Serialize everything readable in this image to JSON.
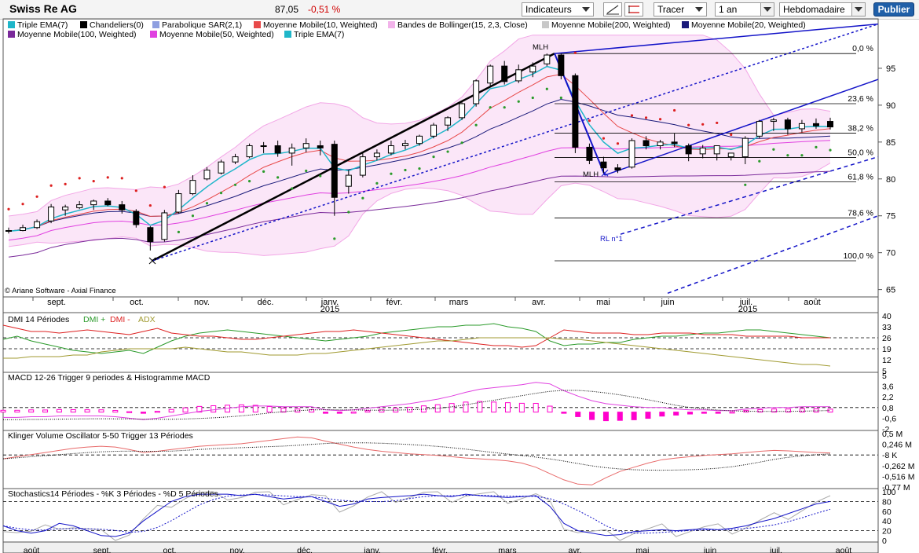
{
  "toolbar": {
    "title": "Swiss Re AG",
    "price": "87,05",
    "change": "-0,51 %",
    "indicators_label": "Indicateurs",
    "draw_label": "Tracer",
    "period_value": "1 an",
    "interval_value": "Hebdomadaire",
    "publish_label": "Publier"
  },
  "legend": [
    {
      "label": "Triple EMA(7)",
      "color": "#1fb6c9"
    },
    {
      "label": "Chandeliers(0)",
      "color": "#000000"
    },
    {
      "label": "Parabolique SAR(2,1)",
      "color": "#8e9fe0"
    },
    {
      "label": "Moyenne Mobile(10, Weighted)",
      "color": "#e84a4a"
    },
    {
      "label": "Bandes de Bollinger(15, 2,3, Close)",
      "color": "#f2b3ea"
    },
    {
      "label": "Moyenne Mobile(200, Weighted)",
      "color": "#c8c8c8"
    },
    {
      "label": "Moyenne Mobile(20, Weighted)",
      "color": "#1a1a7a"
    },
    {
      "label": "Moyenne Mobile(100, Weighted)",
      "color": "#7a2a9a"
    },
    {
      "label": "Moyenne Mobile(50, Weighted)",
      "color": "#e040e0"
    },
    {
      "label": "Triple EMA(7)",
      "color": "#1fb6c9"
    }
  ],
  "copyright": "© Ariane Software - Axial Finance",
  "colors": {
    "price_line": "#000000",
    "up": "#ffffff",
    "down": "#000000",
    "fib": "#000000",
    "trend": "#1414c8"
  },
  "chart_data": [
    {
      "type": "candlestick",
      "yticks": [
        95,
        90,
        85,
        80,
        75,
        70,
        65
      ],
      "ylim": [
        64,
        100
      ],
      "month_labels": [
        "sept.",
        "oct.",
        "nov.",
        "déc.",
        "janv.",
        "févr.",
        "mars",
        "avr.",
        "mai",
        "juin",
        "juil.",
        "août"
      ],
      "year_labels": [
        "2015",
        "2015"
      ],
      "fib_levels": [
        {
          "label": "0,0 %",
          "value": 97.0
        },
        {
          "label": "23,6 %",
          "value": 90.2
        },
        {
          "label": "38,2 %",
          "value": 86.2
        },
        {
          "label": "50,0 %",
          "value": 82.9
        },
        {
          "label": "61,8 %",
          "value": 79.6
        },
        {
          "label": "78,6 %",
          "value": 74.7
        },
        {
          "label": "100,0 %",
          "value": 68.9
        }
      ],
      "annotations": [
        "MLH",
        "MLH",
        "RL n°1"
      ],
      "candles": [
        {
          "o": 73.0,
          "h": 73.4,
          "l": 72.6,
          "c": 72.9
        },
        {
          "o": 73.0,
          "h": 73.8,
          "l": 72.9,
          "c": 73.4
        },
        {
          "o": 73.4,
          "h": 74.5,
          "l": 73.2,
          "c": 74.2
        },
        {
          "o": 74.3,
          "h": 76.6,
          "l": 74.0,
          "c": 76.2
        },
        {
          "o": 75.8,
          "h": 76.5,
          "l": 75.0,
          "c": 76.2
        },
        {
          "o": 76.1,
          "h": 77.0,
          "l": 75.9,
          "c": 76.5
        },
        {
          "o": 76.5,
          "h": 77.2,
          "l": 75.8,
          "c": 77.0
        },
        {
          "o": 77.0,
          "h": 77.4,
          "l": 76.3,
          "c": 76.5
        },
        {
          "o": 76.5,
          "h": 77.0,
          "l": 75.3,
          "c": 75.8
        },
        {
          "o": 75.6,
          "h": 75.9,
          "l": 73.4,
          "c": 73.8
        },
        {
          "o": 73.4,
          "h": 73.6,
          "l": 70.3,
          "c": 71.5
        },
        {
          "o": 71.8,
          "h": 75.8,
          "l": 71.5,
          "c": 75.4
        },
        {
          "o": 75.5,
          "h": 78.5,
          "l": 75.3,
          "c": 78.0
        },
        {
          "o": 78.0,
          "h": 80.5,
          "l": 77.8,
          "c": 79.8
        },
        {
          "o": 80.0,
          "h": 81.6,
          "l": 79.8,
          "c": 81.2
        },
        {
          "o": 80.8,
          "h": 82.6,
          "l": 80.6,
          "c": 82.3
        },
        {
          "o": 82.3,
          "h": 83.4,
          "l": 82.0,
          "c": 83.0
        },
        {
          "o": 83.0,
          "h": 84.8,
          "l": 82.8,
          "c": 84.5
        },
        {
          "o": 84.5,
          "h": 85.0,
          "l": 83.5,
          "c": 84.5
        },
        {
          "o": 84.5,
          "h": 85.2,
          "l": 83.0,
          "c": 83.5
        },
        {
          "o": 83.5,
          "h": 84.8,
          "l": 81.8,
          "c": 84.2
        },
        {
          "o": 84.2,
          "h": 85.5,
          "l": 83.6,
          "c": 84.8
        },
        {
          "o": 84.5,
          "h": 85.2,
          "l": 83.2,
          "c": 84.2
        },
        {
          "o": 84.7,
          "h": 85.2,
          "l": 75.0,
          "c": 77.5
        },
        {
          "o": 79.0,
          "h": 81.2,
          "l": 78.0,
          "c": 80.5
        },
        {
          "o": 80.5,
          "h": 83.5,
          "l": 80.2,
          "c": 83.0
        },
        {
          "o": 83.0,
          "h": 84.0,
          "l": 82.5,
          "c": 83.5
        },
        {
          "o": 83.5,
          "h": 85.2,
          "l": 83.2,
          "c": 84.5
        },
        {
          "o": 84.5,
          "h": 85.3,
          "l": 84.0,
          "c": 84.8
        },
        {
          "o": 84.8,
          "h": 86.0,
          "l": 84.5,
          "c": 85.8
        },
        {
          "o": 85.8,
          "h": 87.6,
          "l": 85.5,
          "c": 87.3
        },
        {
          "o": 87.3,
          "h": 88.5,
          "l": 86.5,
          "c": 88.3
        },
        {
          "o": 88.3,
          "h": 90.5,
          "l": 88.0,
          "c": 90.2
        },
        {
          "o": 90.2,
          "h": 93.5,
          "l": 89.8,
          "c": 93.3
        },
        {
          "o": 93.0,
          "h": 95.5,
          "l": 92.5,
          "c": 95.3
        },
        {
          "o": 95.3,
          "h": 96.0,
          "l": 92.8,
          "c": 93.2
        },
        {
          "o": 93.3,
          "h": 95.5,
          "l": 93.0,
          "c": 94.8
        },
        {
          "o": 94.5,
          "h": 95.8,
          "l": 93.8,
          "c": 95.3
        },
        {
          "o": 95.6,
          "h": 97.0,
          "l": 95.3,
          "c": 96.8
        },
        {
          "o": 96.8,
          "h": 97.0,
          "l": 93.5,
          "c": 94.0
        },
        {
          "o": 94.0,
          "h": 94.3,
          "l": 83.5,
          "c": 84.3
        },
        {
          "o": 84.3,
          "h": 84.8,
          "l": 82.0,
          "c": 82.5
        },
        {
          "o": 82.3,
          "h": 83.0,
          "l": 80.8,
          "c": 81.5
        },
        {
          "o": 81.5,
          "h": 82.0,
          "l": 80.8,
          "c": 81.2
        },
        {
          "o": 81.6,
          "h": 85.5,
          "l": 81.4,
          "c": 85.2
        },
        {
          "o": 85.2,
          "h": 85.8,
          "l": 84.0,
          "c": 84.5
        },
        {
          "o": 84.5,
          "h": 85.3,
          "l": 84.0,
          "c": 85.0
        },
        {
          "o": 85.0,
          "h": 86.2,
          "l": 84.3,
          "c": 84.8
        },
        {
          "o": 84.5,
          "h": 84.8,
          "l": 82.4,
          "c": 83.4
        },
        {
          "o": 83.4,
          "h": 84.6,
          "l": 82.8,
          "c": 84.2
        },
        {
          "o": 83.4,
          "h": 84.5,
          "l": 82.5,
          "c": 84.5
        },
        {
          "o": 83.0,
          "h": 83.5,
          "l": 82.5,
          "c": 83.5
        },
        {
          "o": 83.0,
          "h": 85.8,
          "l": 82.0,
          "c": 85.5
        },
        {
          "o": 85.8,
          "h": 88.0,
          "l": 85.5,
          "c": 87.8
        },
        {
          "o": 87.8,
          "h": 88.3,
          "l": 86.5,
          "c": 88.0
        },
        {
          "o": 88.0,
          "h": 88.3,
          "l": 86.0,
          "c": 86.8
        },
        {
          "o": 86.8,
          "h": 88.0,
          "l": 86.3,
          "c": 87.5
        },
        {
          "o": 87.5,
          "h": 88.2,
          "l": 86.8,
          "c": 87.2
        },
        {
          "o": 87.8,
          "h": 88.3,
          "l": 86.7,
          "c": 87.05
        }
      ]
    },
    {
      "type": "line",
      "title": "DMI 14 Périodes",
      "series_labels": [
        "DMI +",
        "DMI -",
        "ADX"
      ],
      "series_colors": [
        "#2a9a2a",
        "#dd2020",
        "#a09a30"
      ],
      "yticks": [
        40,
        33,
        26,
        19,
        12,
        5
      ],
      "ylim": [
        5,
        40
      ]
    },
    {
      "type": "line",
      "title": "MACD 12-26   Trigger 9 periodes & Histogramme MACD",
      "yticks": [
        "5",
        "3,6",
        "2,2",
        "0,8",
        "-0,6",
        "-2"
      ],
      "ylim": [
        -2,
        5
      ]
    },
    {
      "type": "line",
      "title": "Klinger Volume Oscillator 5-50   Trigger 13 Périodes",
      "yticks": [
        "0,5 M",
        "0,246 M",
        "-8 K",
        "-0,262 M",
        "-0,516 M",
        "-0,77 M"
      ],
      "ylim": [
        -0.77,
        0.5
      ]
    },
    {
      "type": "line",
      "title": "Stochastics14 Périodes  -  %K 3 Périodes  -  %D 5 Périodes",
      "yticks": [
        100,
        80,
        60,
        40,
        20,
        0
      ],
      "ylim": [
        0,
        100
      ],
      "month_labels": [
        "août",
        "sept.",
        "oct.",
        "nov.",
        "déc.",
        "janv.",
        "févr.",
        "mars",
        "avr.",
        "mai",
        "juin",
        "juil.",
        "août"
      ]
    }
  ]
}
